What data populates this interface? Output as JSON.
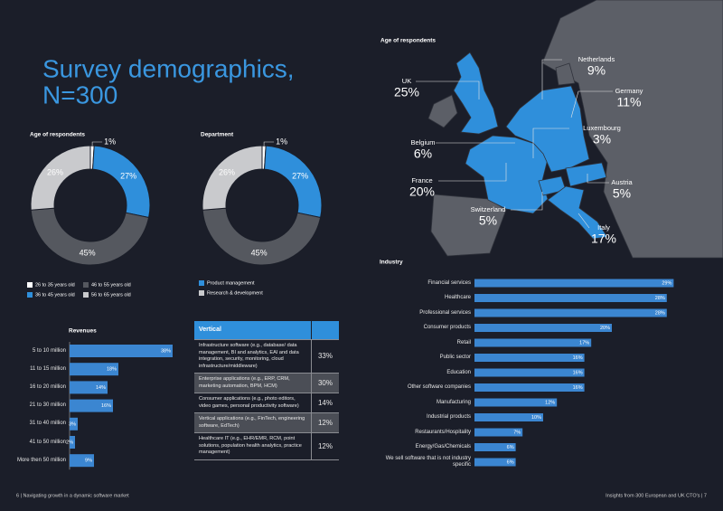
{
  "title": [
    "Survey demographics,",
    "N=300"
  ],
  "footer": {
    "left": "6  |  Navigating growth in a dynamic software market",
    "right": "Insights from 300 European and UK CTO's  |  7"
  },
  "chart_data": [
    {
      "type": "donut",
      "title": "Age of respondents",
      "categories": [
        "26 to 35 years old",
        "36 to 45 years old",
        "46 to 55 years old",
        "56 to 65 years old"
      ],
      "colors": [
        "#ffffff",
        "#2f8fdb",
        "#55585f",
        "#c9cacd"
      ],
      "values": [
        1,
        27,
        45,
        26
      ],
      "value_labels": [
        "1%",
        "27%",
        "45%",
        "26%"
      ]
    },
    {
      "type": "donut",
      "title": "Department",
      "categories": [
        null,
        "Product management",
        null,
        "Research & development"
      ],
      "colors": [
        "#ffffff",
        "#2f8fdb",
        "#55585f",
        "#c9cacd"
      ],
      "values": [
        1,
        27,
        45,
        26
      ],
      "value_labels": [
        "1%",
        "27%",
        "45%",
        "26%"
      ]
    },
    {
      "type": "map",
      "title": "Age of respondents",
      "categories": [
        "UK",
        "Netherlands",
        "Germany",
        "Luxembourg",
        "Belgium",
        "France",
        "Austria",
        "Switzerland",
        "Italy"
      ],
      "values": [
        25,
        9,
        11,
        3,
        6,
        20,
        5,
        5,
        17
      ],
      "value_labels": [
        "25%",
        "9%",
        "11%",
        "3%",
        "6%",
        "20%",
        "5%",
        "5%",
        "17%"
      ],
      "color": "#2f8fdb"
    },
    {
      "type": "hbar",
      "title": "Industry",
      "categories": [
        "Financial services",
        "Healthcare",
        "Professional services",
        "Consumer products",
        "Retail",
        "Public sector",
        "Education",
        "Other software companies",
        "Manufacturing",
        "Industrial products",
        "Restaurants/Hospitality",
        "Energy/Gas/Chemicals",
        "We sell software that is not industry specific"
      ],
      "values": [
        29,
        28,
        28,
        20,
        17,
        16,
        16,
        16,
        12,
        10,
        7,
        6,
        6
      ],
      "value_labels": [
        "29%",
        "28%",
        "28%",
        "20%",
        "17%",
        "16%",
        "16%",
        "16%",
        "12%",
        "10%",
        "7%",
        "6%",
        "6%"
      ],
      "color": "#3b86d1"
    },
    {
      "type": "hbar",
      "title": "Revenues",
      "categories": [
        "5 to 10 million",
        "11 to 15 million",
        "16 to 20 million",
        "21 to 30 million",
        "31 to 40 million",
        "41 to 50 million",
        "More then 50 million"
      ],
      "values": [
        38,
        18,
        14,
        16,
        3,
        2,
        9
      ],
      "value_labels": [
        "38%",
        "18%",
        "14%",
        "16%",
        "3%",
        "2%",
        "9%"
      ],
      "color": "#3b86d1"
    }
  ],
  "table": {
    "header": "Vertical",
    "rows": [
      [
        "Infrastructure software (e.g., database/ data management, BI and analytics, EAI and data integration, security, monitoring, cloud infrastructure/middleware)",
        "33%"
      ],
      [
        "Enterprise applications (e.g., ERP, CRM, marketing automation, BPM, HCM)",
        "30%"
      ],
      [
        "Consumer applications (e.g., photo editors, video games, personal productivity software)",
        "14%"
      ],
      [
        "Vertical applications (e.g., FinTech, engineering software, EdTech)",
        "12%"
      ],
      [
        "Healthcare IT (e.g., EHR/EMR, RCM, point solutions, population health analytics, practice management)",
        "12%"
      ]
    ]
  }
}
